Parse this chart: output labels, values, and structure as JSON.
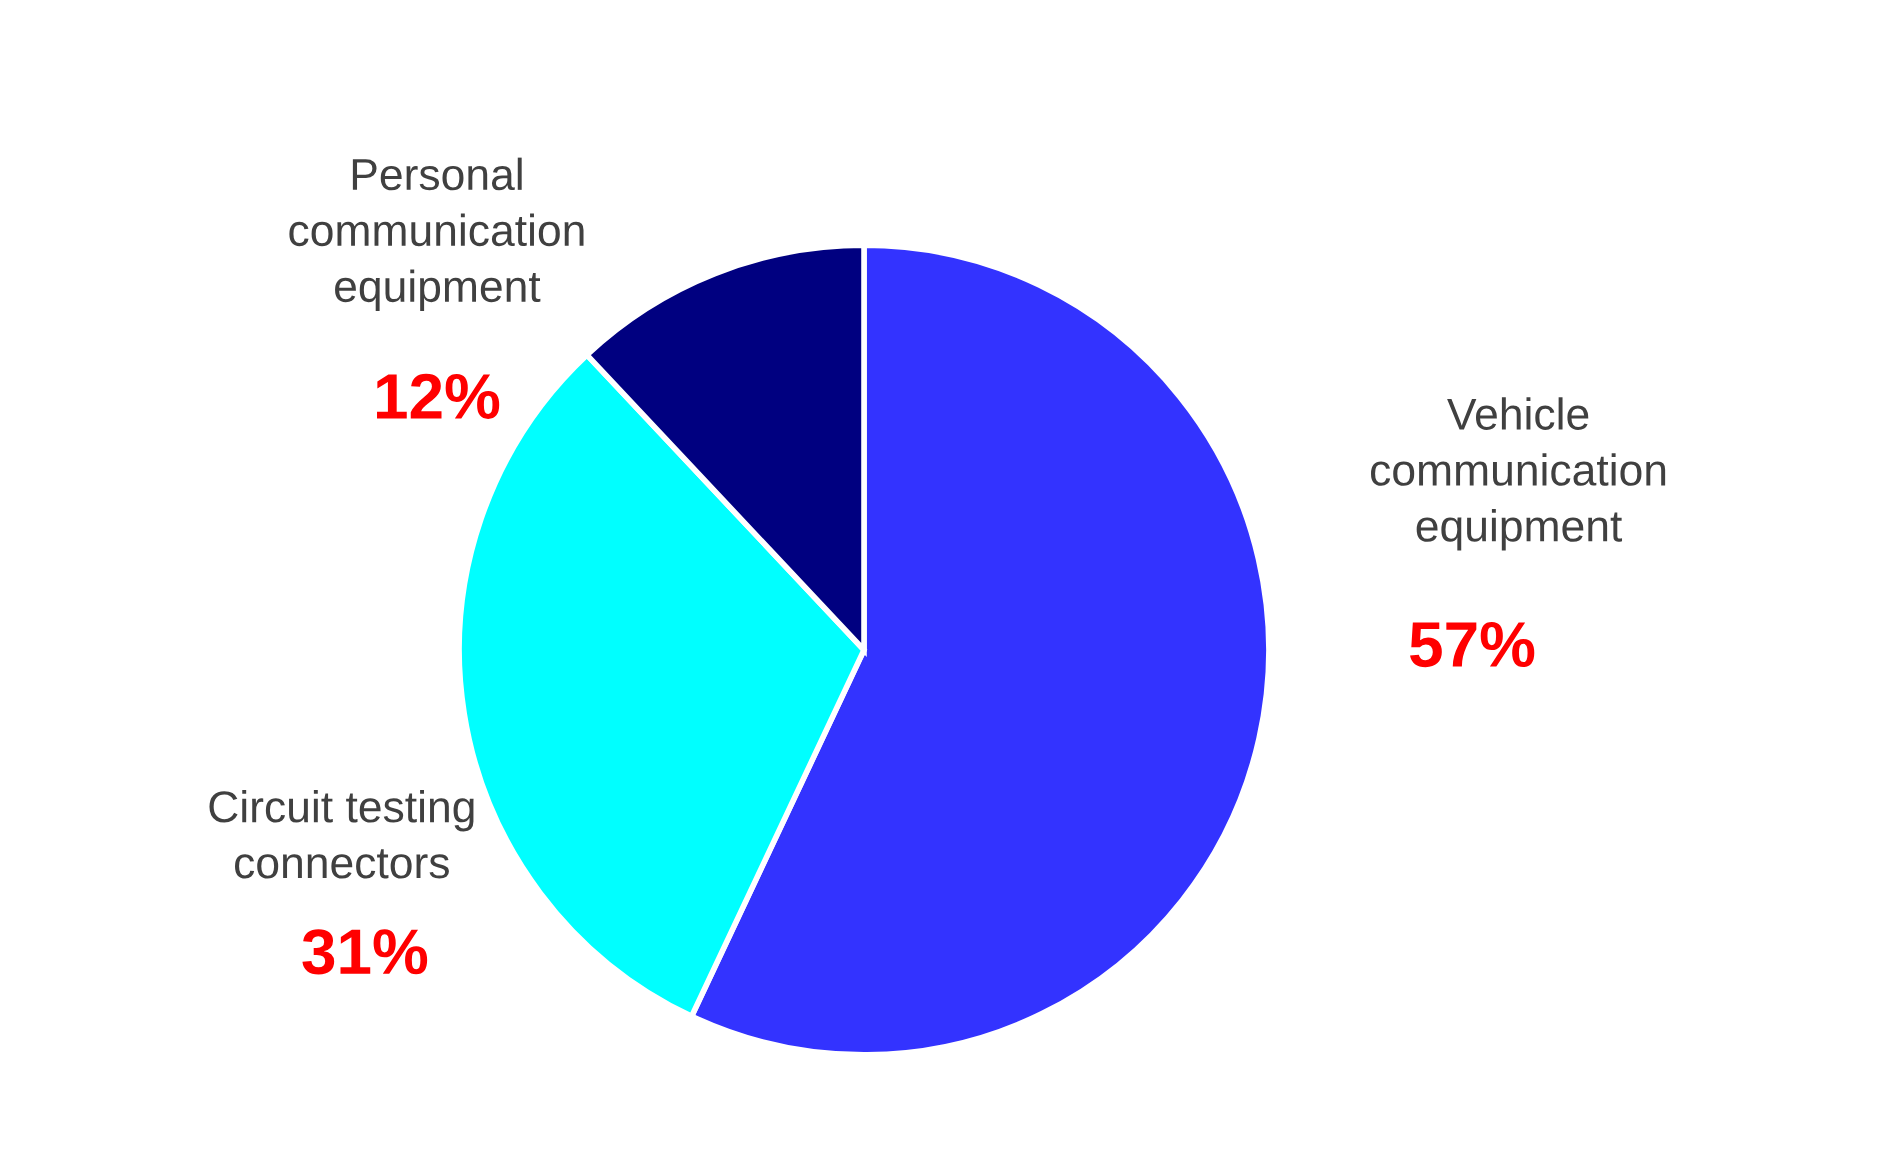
{
  "chart_data": {
    "type": "pie",
    "categories": [
      "Vehicle communication equipment",
      "Circuit testing connectors",
      "Personal communication equipment"
    ],
    "values": [
      57,
      31,
      12
    ],
    "colors": [
      "#3333ff",
      "#00ffff",
      "#000080"
    ],
    "value_labels": [
      "57%",
      "31%",
      "12%"
    ]
  }
}
